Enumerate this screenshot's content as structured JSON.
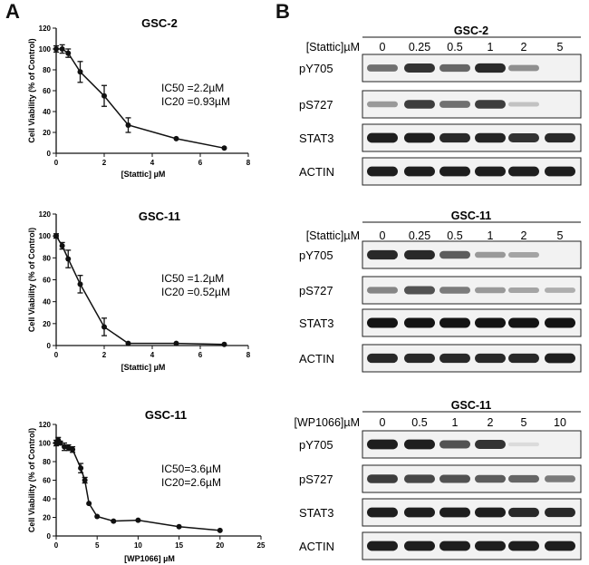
{
  "panels": {
    "a": "A",
    "b": "B"
  },
  "chart_data": [
    {
      "type": "line",
      "title": "GSC-2",
      "xlabel": "[Stattic] µM",
      "ylabel": "Cell Viability (% of Control)",
      "xlim": [
        0,
        8
      ],
      "ylim": [
        0,
        120
      ],
      "xticks": [
        0,
        2,
        4,
        6,
        8
      ],
      "yticks": [
        0,
        20,
        40,
        60,
        80,
        100,
        120
      ],
      "x": [
        0,
        0.25,
        0.5,
        1,
        2,
        3,
        5,
        7
      ],
      "y": [
        100,
        100,
        96,
        78,
        55,
        27,
        14,
        5
      ],
      "err": [
        3,
        4,
        4,
        10,
        10,
        7,
        1,
        1
      ],
      "annotations": [
        "IC50 =2.2µM",
        "IC20 =0.93µM"
      ]
    },
    {
      "type": "line",
      "title": "GSC-11",
      "xlabel": "[Stattic] µM",
      "ylabel": "Cell Viability (% of Control)",
      "xlim": [
        0,
        8
      ],
      "ylim": [
        0,
        120
      ],
      "xticks": [
        0,
        2,
        4,
        6,
        8
      ],
      "yticks": [
        0,
        20,
        40,
        60,
        80,
        100,
        120
      ],
      "x": [
        0,
        0.25,
        0.5,
        1,
        2,
        3,
        5,
        7
      ],
      "y": [
        100,
        91,
        79,
        56,
        17,
        2,
        2,
        1
      ],
      "err": [
        2,
        3,
        8,
        8,
        8,
        1,
        1,
        1
      ],
      "annotations": [
        "IC50 =1.2µM",
        "IC20 =0.52µM"
      ]
    },
    {
      "type": "line",
      "title": "GSC-11",
      "xlabel": "[WP1066] µM",
      "ylabel": "Cell Viability (% of Control)",
      "xlim": [
        0,
        25
      ],
      "ylim": [
        0,
        120
      ],
      "xticks": [
        0,
        5,
        10,
        15,
        20,
        25
      ],
      "yticks": [
        0,
        20,
        40,
        60,
        80,
        100,
        120
      ],
      "x": [
        0,
        0.25,
        0.5,
        1,
        1.5,
        2,
        3,
        3.5,
        4,
        5,
        7,
        10,
        15,
        20
      ],
      "y": [
        100,
        103,
        100,
        96,
        95,
        93,
        73,
        60,
        35,
        21,
        16,
        17,
        10,
        6
      ],
      "err": [
        3,
        3,
        2,
        4,
        3,
        3,
        5,
        3,
        1,
        1,
        1,
        1,
        1,
        1
      ],
      "annotations": [
        "IC50=3.6µM",
        "IC20=2.6µM"
      ]
    }
  ],
  "blots": [
    {
      "title": "GSC-2",
      "condition_label": "[Stattic]µM",
      "conditions": [
        "0",
        "0.25",
        "0.5",
        "1",
        "2",
        "5"
      ],
      "rows": [
        {
          "label": "pY705",
          "intensity": [
            0.55,
            0.85,
            0.6,
            0.9,
            0.4,
            0.0
          ]
        },
        {
          "label": "pS727",
          "intensity": [
            0.35,
            0.8,
            0.55,
            0.8,
            0.15,
            0.0
          ]
        },
        {
          "label": "STAT3",
          "intensity": [
            0.95,
            0.95,
            0.9,
            0.92,
            0.85,
            0.9
          ]
        },
        {
          "label": "ACTIN",
          "intensity": [
            0.95,
            0.95,
            0.95,
            0.95,
            0.95,
            0.95
          ]
        }
      ]
    },
    {
      "title": "GSC-11",
      "condition_label": "[Stattic]µM",
      "conditions": [
        "0",
        "0.25",
        "0.5",
        "1",
        "2",
        "5"
      ],
      "rows": [
        {
          "label": "pY705",
          "intensity": [
            0.9,
            0.9,
            0.65,
            0.35,
            0.3,
            0.0
          ]
        },
        {
          "label": "pS727",
          "intensity": [
            0.45,
            0.7,
            0.5,
            0.35,
            0.3,
            0.25
          ]
        },
        {
          "label": "STAT3",
          "intensity": [
            1.0,
            1.0,
            1.0,
            1.0,
            1.0,
            1.0
          ]
        },
        {
          "label": "ACTIN",
          "intensity": [
            0.9,
            0.9,
            0.9,
            0.9,
            0.9,
            0.95
          ]
        }
      ]
    },
    {
      "title": "GSC-11",
      "condition_label": "[WP1066]µM",
      "conditions": [
        "0",
        "0.5",
        "1",
        "2",
        "5",
        "10"
      ],
      "rows": [
        {
          "label": "pY705",
          "intensity": [
            0.95,
            0.95,
            0.7,
            0.85,
            0.03,
            0.0
          ]
        },
        {
          "label": "pS727",
          "intensity": [
            0.8,
            0.75,
            0.7,
            0.65,
            0.6,
            0.5
          ]
        },
        {
          "label": "STAT3",
          "intensity": [
            0.95,
            0.95,
            0.95,
            0.95,
            0.9,
            0.9
          ]
        },
        {
          "label": "ACTIN",
          "intensity": [
            0.95,
            0.95,
            0.95,
            0.95,
            0.95,
            0.95
          ]
        }
      ]
    }
  ]
}
